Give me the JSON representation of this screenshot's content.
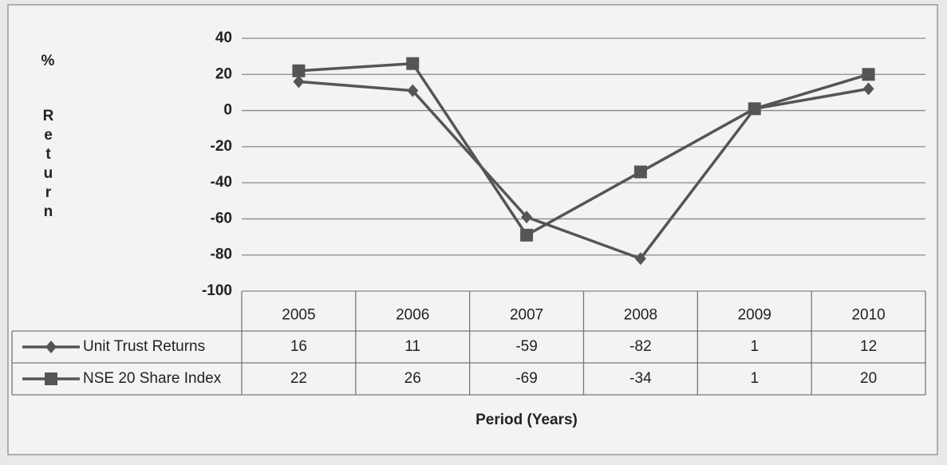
{
  "chart_data": {
    "type": "line",
    "y_label": "%",
    "y_label_word": "Return",
    "x_label": "Period (Years)",
    "categories": [
      "2005",
      "2006",
      "2007",
      "2008",
      "2009",
      "2010"
    ],
    "series": [
      {
        "name": "Unit Trust Returns",
        "color": "#555555",
        "marker": "diamond",
        "values": [
          16,
          11,
          -59,
          -82,
          1,
          12
        ]
      },
      {
        "name": "NSE 20 Share Index",
        "color": "#555555",
        "marker": "square",
        "values": [
          22,
          26,
          -69,
          -34,
          1,
          20
        ]
      }
    ],
    "ylim": [
      -100,
      40
    ],
    "yticks": [
      -100,
      -80,
      -60,
      -40,
      -20,
      0,
      20,
      40
    ],
    "grid": true
  }
}
